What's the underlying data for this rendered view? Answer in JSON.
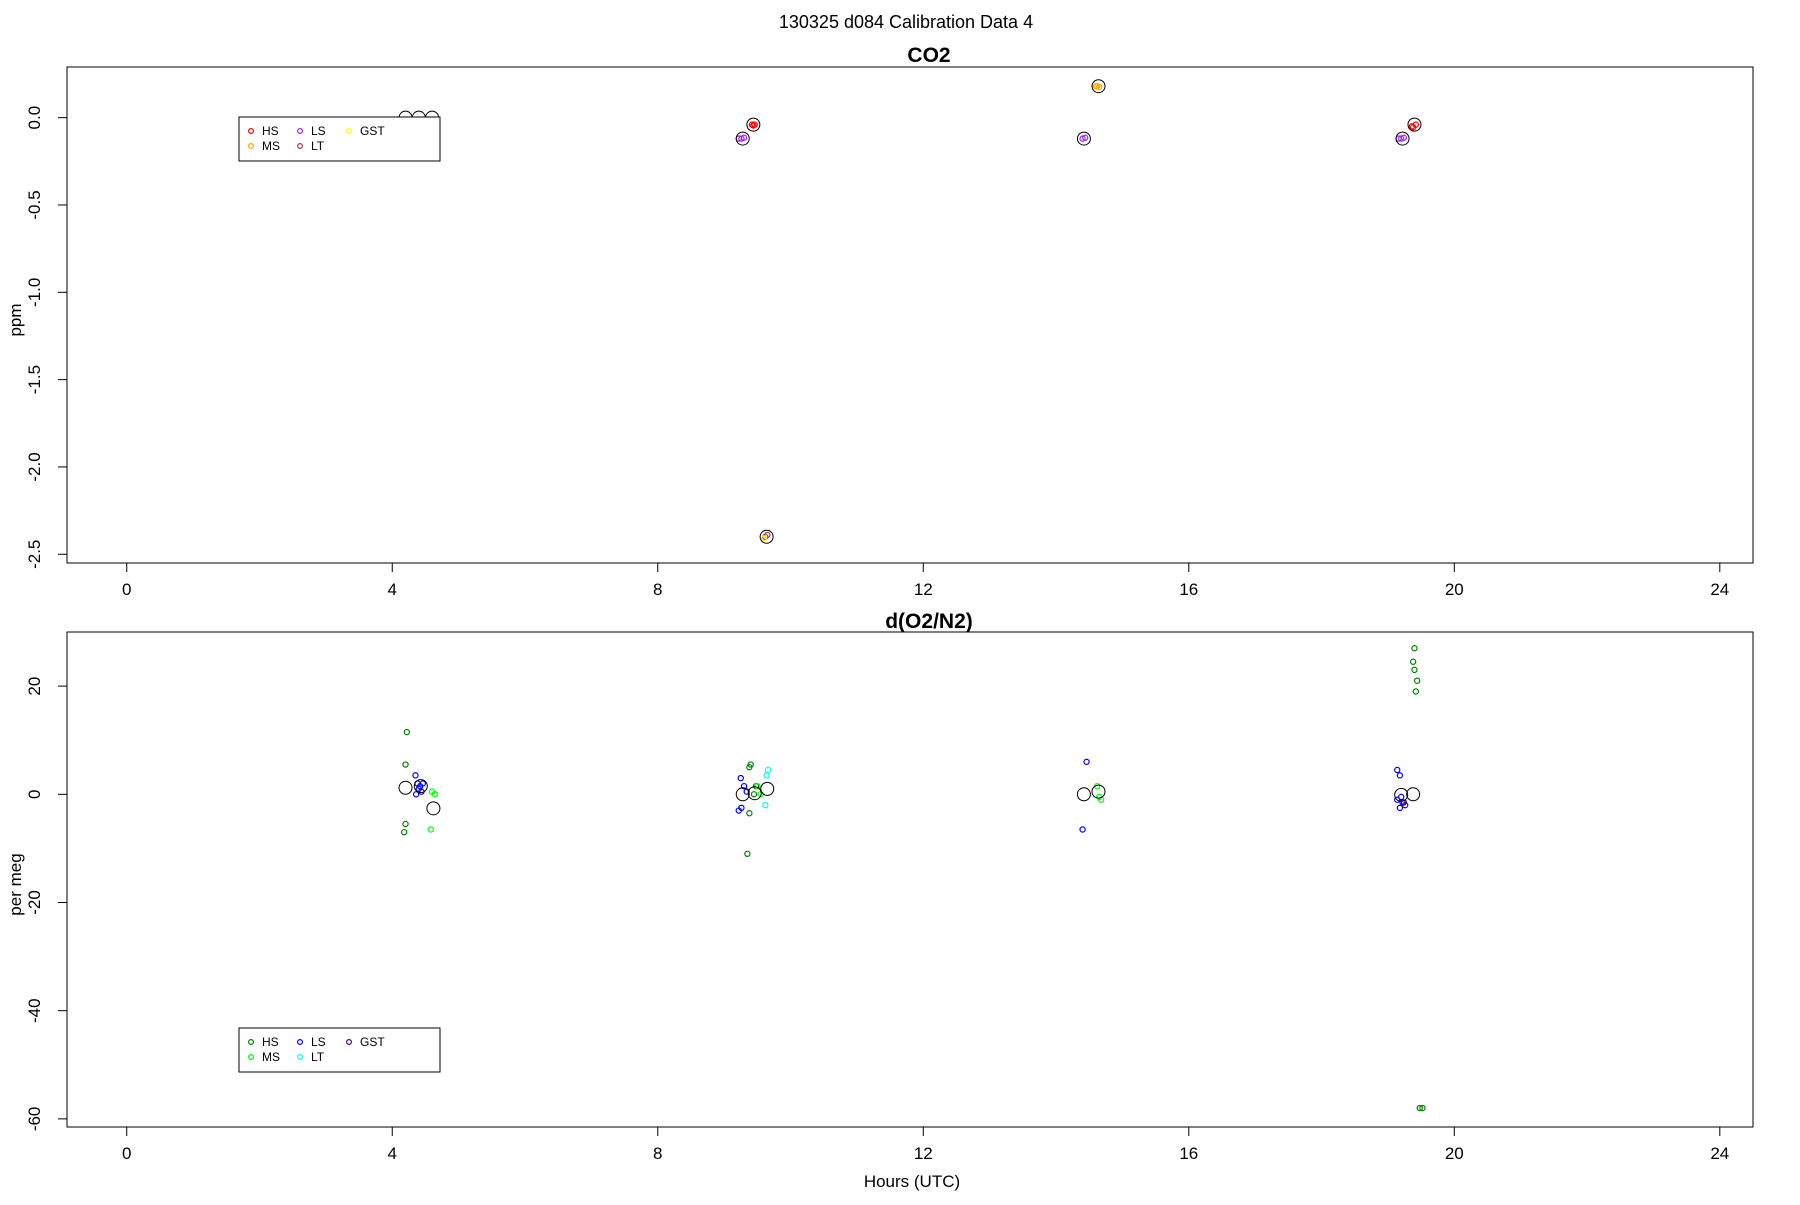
{
  "figure_title": "130325   d084   Calibration Data 4",
  "chart_data": [
    {
      "type": "scatter",
      "title": "CO2",
      "xlabel": "",
      "ylabel": "ppm",
      "xlim": [
        -0.9,
        24.5
      ],
      "ylim": [
        -2.55,
        0.29
      ],
      "xticks": [
        0,
        4,
        8,
        12,
        16,
        20,
        24
      ],
      "yticks": [
        0.0,
        -0.5,
        -1.0,
        -1.5,
        -2.0,
        -2.5
      ],
      "ytick_labels": [
        "0.0",
        "-0.5",
        "-1.0",
        "-1.5",
        "-2.0",
        "-2.5"
      ],
      "legend": {
        "position": "top-left",
        "entries": [
          {
            "label": "HS",
            "color": "#ff0000"
          },
          {
            "label": "MS",
            "color": "#ffa500"
          },
          {
            "label": "LS",
            "color": "#a020f0"
          },
          {
            "label": "LT",
            "color": "#b03060"
          },
          {
            "label": "GST",
            "color": "#ffff00"
          }
        ]
      },
      "series": [
        {
          "label": "HS",
          "color": "#ff0000",
          "points": [
            [
              9.42,
              -0.04
            ],
            [
              9.46,
              -0.04
            ],
            [
              9.44,
              -0.045
            ],
            [
              19.36,
              -0.05
            ],
            [
              19.42,
              -0.04
            ],
            [
              19.38,
              -0.055
            ]
          ]
        },
        {
          "label": "MS",
          "color": "#ffa500",
          "points": [
            [
              14.62,
              0.18
            ],
            [
              14.65,
              0.175
            ],
            [
              14.6,
              0.18
            ]
          ]
        },
        {
          "label": "LS",
          "color": "#a020f0",
          "points": [
            [
              9.22,
              -0.12
            ],
            [
              9.3,
              -0.115
            ],
            [
              9.26,
              -0.12
            ],
            [
              14.4,
              -0.12
            ],
            [
              14.44,
              -0.115
            ],
            [
              19.16,
              -0.12
            ],
            [
              19.24,
              -0.115
            ],
            [
              19.2,
              -0.12
            ]
          ]
        },
        {
          "label": "LT",
          "color": "#b03060",
          "points": [
            [
              9.62,
              -2.4
            ],
            [
              9.65,
              -2.39
            ]
          ]
        },
        {
          "label": "GST",
          "color": "#ffff00",
          "points": [
            [
              9.6,
              -2.41
            ]
          ]
        }
      ],
      "means": [
        [
          4.2,
          0.0
        ],
        [
          4.4,
          0.0
        ],
        [
          4.6,
          0.0
        ],
        [
          9.28,
          -0.12
        ],
        [
          9.44,
          -0.04
        ],
        [
          9.64,
          -2.4
        ],
        [
          14.42,
          -0.12
        ],
        [
          14.64,
          0.18
        ],
        [
          19.22,
          -0.12
        ],
        [
          19.4,
          -0.04
        ]
      ]
    },
    {
      "type": "scatter",
      "title": "d(O2/N2)",
      "xlabel": "Hours (UTC)",
      "ylabel": "per meg",
      "xlim": [
        -0.9,
        24.5
      ],
      "ylim": [
        -61.5,
        30
      ],
      "xticks": [
        0,
        4,
        8,
        12,
        16,
        20,
        24
      ],
      "yticks": [
        20,
        0,
        -20,
        -40,
        -60
      ],
      "ytick_labels": [
        "20",
        "0",
        "-20",
        "-40",
        "-60"
      ],
      "legend": {
        "position": "bottom-left",
        "entries": [
          {
            "label": "HS",
            "color": "#008000"
          },
          {
            "label": "MS",
            "color": "#00ff00"
          },
          {
            "label": "LS",
            "color": "#0000ff"
          },
          {
            "label": "LT",
            "color": "#00ffff"
          },
          {
            "label": "GST",
            "color": "#4b0082"
          }
        ]
      },
      "series": [
        {
          "label": "HS",
          "color": "#008000",
          "points": [
            [
              4.22,
              11.5
            ],
            [
              4.2,
              5.5
            ],
            [
              4.2,
              -5.5
            ],
            [
              4.18,
              -7
            ],
            [
              9.38,
              5
            ],
            [
              9.4,
              5.5
            ],
            [
              9.48,
              1.5
            ],
            [
              9.45,
              0
            ],
            [
              9.38,
              -3.5
            ],
            [
              9.35,
              -11
            ],
            [
              19.4,
              27
            ],
            [
              19.38,
              24.5
            ],
            [
              19.4,
              23
            ],
            [
              19.44,
              21
            ],
            [
              19.42,
              19
            ],
            [
              19.48,
              -58
            ],
            [
              19.52,
              -58
            ]
          ]
        },
        {
          "label": "MS",
          "color": "#00ff00",
          "points": [
            [
              4.6,
              0.5
            ],
            [
              4.64,
              0.0
            ],
            [
              4.58,
              -6.5
            ],
            [
              9.5,
              1.5
            ],
            [
              9.55,
              0.0
            ],
            [
              14.62,
              1.5
            ],
            [
              14.65,
              -0.5
            ],
            [
              14.68,
              -1
            ]
          ]
        },
        {
          "label": "LS",
          "color": "#0000ff",
          "points": [
            [
              4.35,
              3.5
            ],
            [
              4.38,
              2
            ],
            [
              4.42,
              1.5
            ],
            [
              4.46,
              2
            ],
            [
              4.4,
              1
            ],
            [
              4.44,
              0.5
            ],
            [
              4.36,
              0
            ],
            [
              9.25,
              3
            ],
            [
              9.3,
              1.5
            ],
            [
              9.34,
              0.5
            ],
            [
              9.26,
              -2.5
            ],
            [
              9.22,
              -3
            ],
            [
              14.46,
              6
            ],
            [
              14.4,
              -6.5
            ],
            [
              19.14,
              4.5
            ],
            [
              19.18,
              3.5
            ],
            [
              19.2,
              -0.5
            ],
            [
              19.14,
              -1
            ],
            [
              19.22,
              -1.5
            ],
            [
              19.18,
              -2.5
            ]
          ]
        },
        {
          "label": "LT",
          "color": "#00ffff",
          "points": [
            [
              9.66,
              4.5
            ],
            [
              9.64,
              3.5
            ],
            [
              9.62,
              -2
            ]
          ]
        },
        {
          "label": "GST",
          "color": "#4b0082",
          "points": [
            [
              19.24,
              -1.5
            ],
            [
              19.26,
              -2
            ]
          ]
        }
      ],
      "means": [
        [
          4.2,
          1.2
        ],
        [
          4.43,
          1.5
        ],
        [
          4.62,
          -2.6
        ],
        [
          9.28,
          0.0
        ],
        [
          9.46,
          0.2
        ],
        [
          9.65,
          1.0
        ],
        [
          14.42,
          0.0
        ],
        [
          14.64,
          0.5
        ],
        [
          19.2,
          -0.1
        ],
        [
          19.38,
          0.0
        ]
      ]
    }
  ]
}
